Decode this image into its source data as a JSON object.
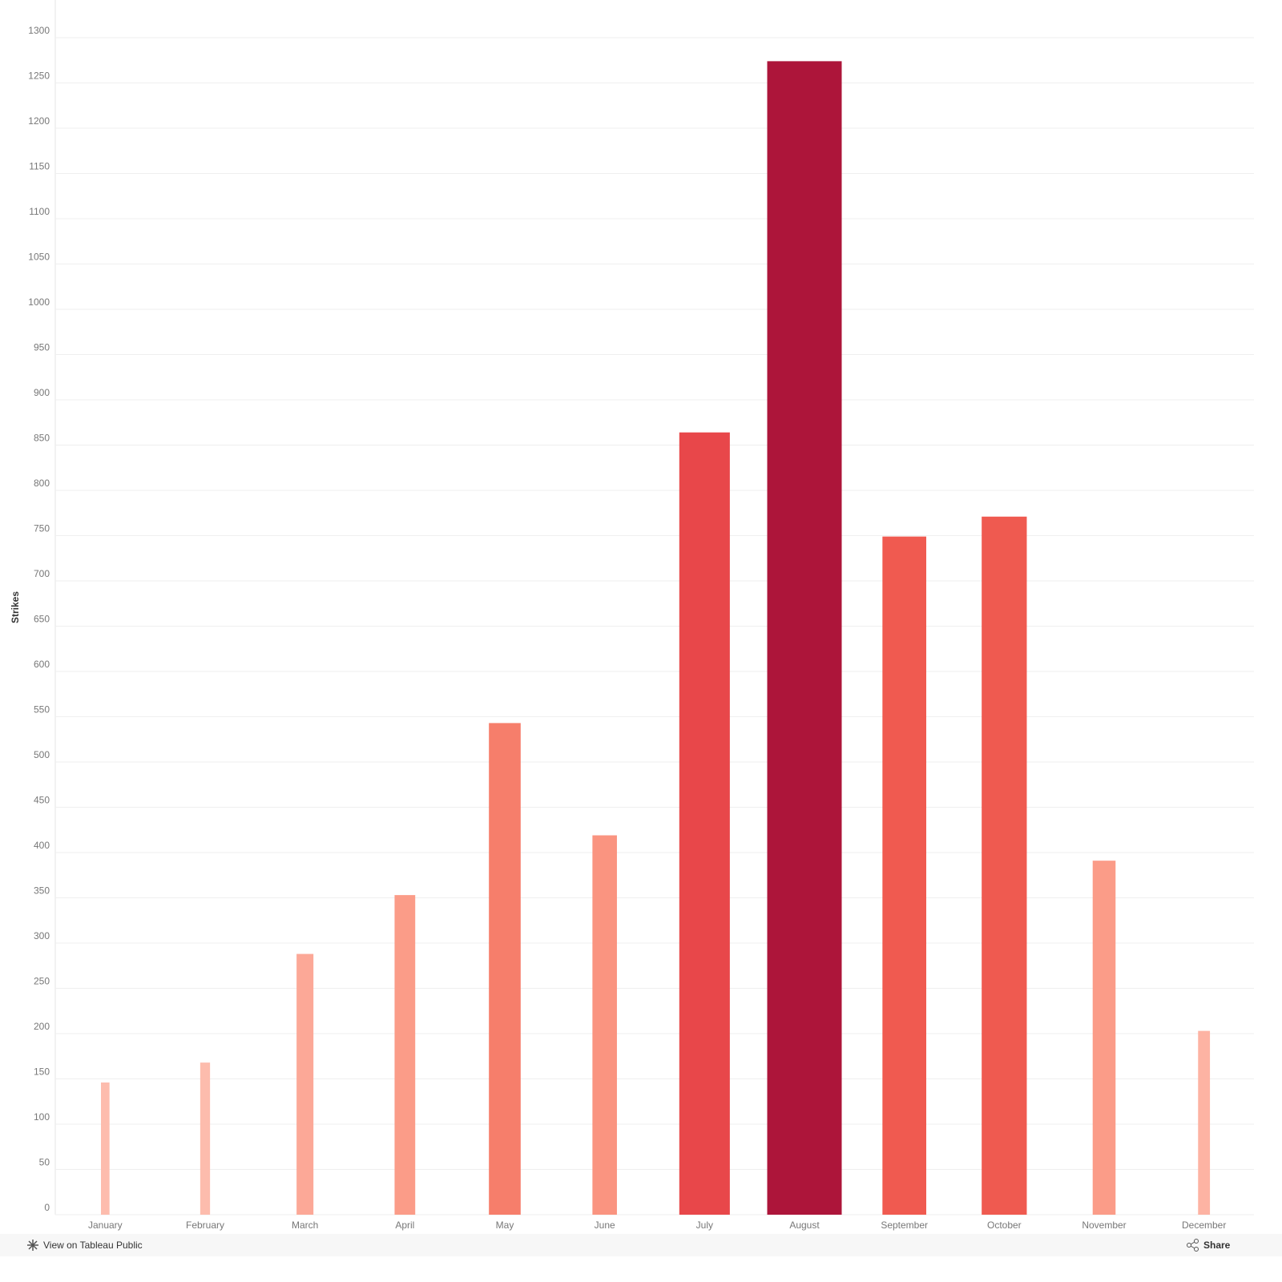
{
  "chart_data": {
    "type": "bar",
    "ylabel": "Strikes",
    "categories": [
      "January",
      "February",
      "March",
      "April",
      "May",
      "June",
      "July",
      "August",
      "September",
      "October",
      "November",
      "December"
    ],
    "values": [
      146,
      168,
      288,
      353,
      543,
      419,
      864,
      1274,
      749,
      771,
      391,
      203
    ],
    "colors": [
      "#fdbcad",
      "#fdbcad",
      "#fca897",
      "#fb9c88",
      "#f67e6b",
      "#fa9480",
      "#e8474a",
      "#ad153a",
      "#f05a50",
      "#ef5a50",
      "#fb9c88",
      "#fdb3a3"
    ],
    "ylim": [
      0,
      1300
    ],
    "yticks": [
      0,
      50,
      100,
      150,
      200,
      250,
      300,
      350,
      400,
      450,
      500,
      550,
      600,
      650,
      700,
      750,
      800,
      850,
      900,
      950,
      1000,
      1050,
      1100,
      1150,
      1200,
      1250,
      1300
    ],
    "grid": true
  },
  "footer": {
    "link": "View on Tableau Public",
    "share": "Share"
  }
}
